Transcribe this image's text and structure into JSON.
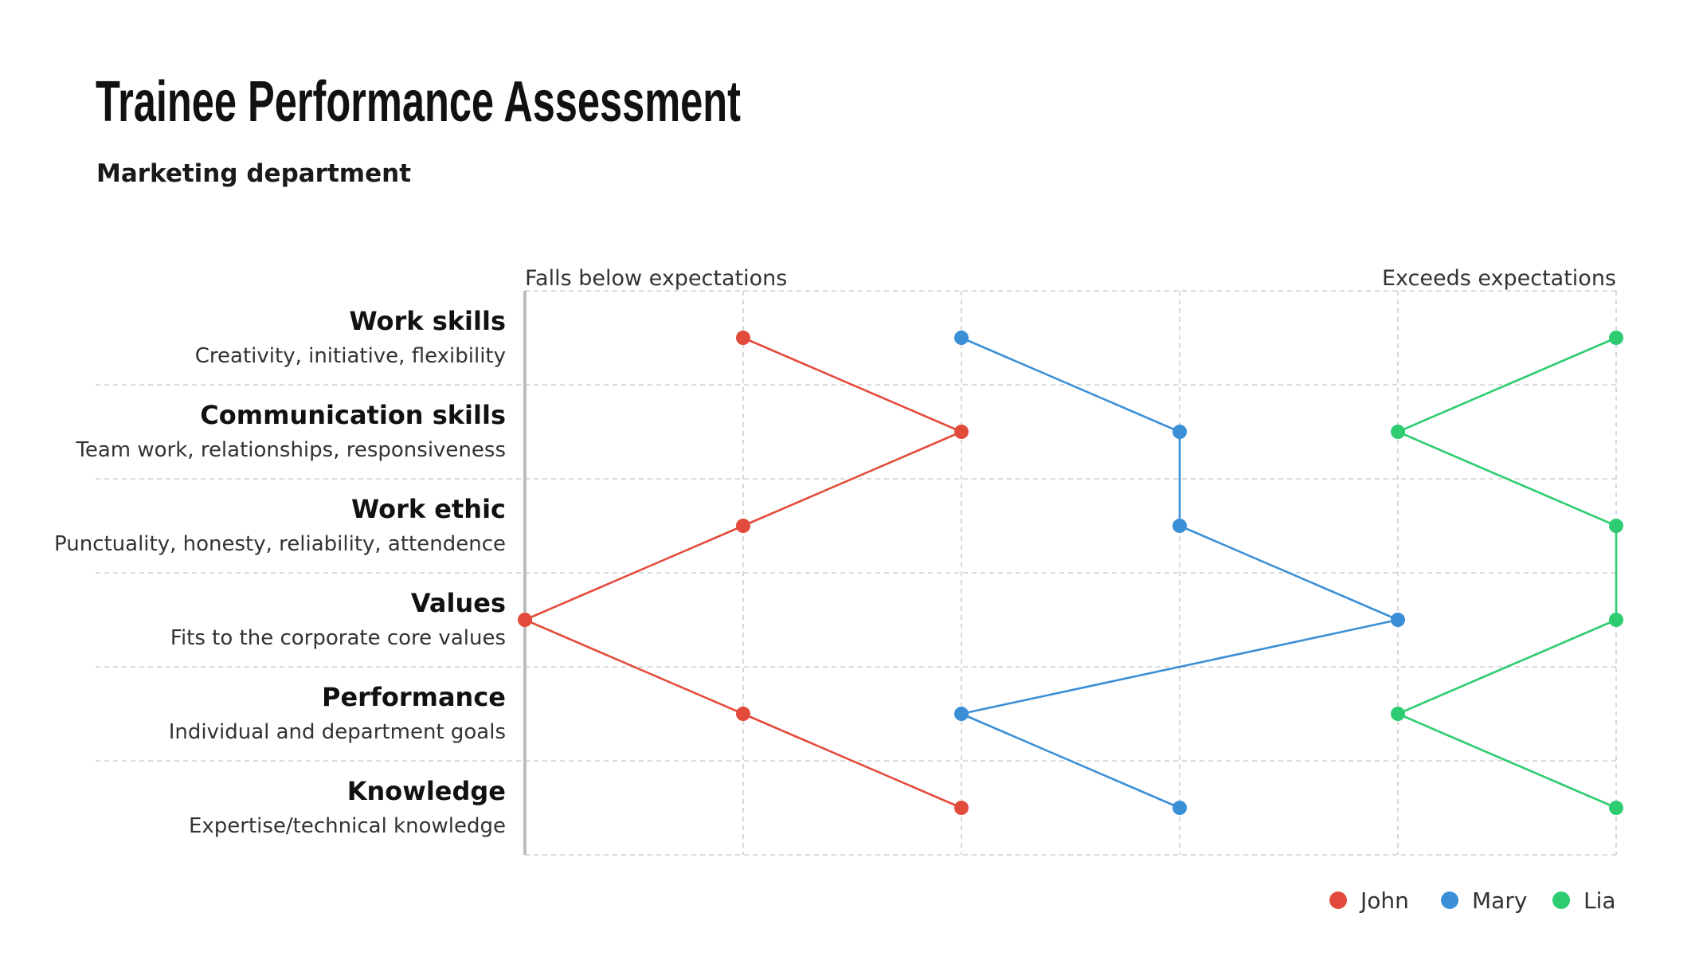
{
  "page": {
    "title": "Trainee Performance Assessment",
    "subtitle": "Marketing department"
  },
  "chart_data": {
    "type": "line",
    "orientation": "horizontal-categories",
    "categories": [
      {
        "label": "Work skills",
        "description": "Creativity, initiative, flexibility"
      },
      {
        "label": "Communication skills",
        "description": "Team work, relationships, responsiveness"
      },
      {
        "label": "Work ethic",
        "description": "Punctuality, honesty, reliability, attendence"
      },
      {
        "label": "Values",
        "description": "Fits to the corporate core values"
      },
      {
        "label": "Performance",
        "description": "Individual and department goals"
      },
      {
        "label": "Knowledge",
        "description": "Expertise/technical knowledge"
      }
    ],
    "scale_min_label": "Falls below expectations",
    "scale_max_label": "Exceeds expectations",
    "xlim": [
      0,
      5
    ],
    "series": [
      {
        "name": "John",
        "color": "#e24b3b",
        "values": [
          1,
          2,
          1,
          0,
          1,
          2
        ]
      },
      {
        "name": "Mary",
        "color": "#3a8fd6",
        "values": [
          2,
          3,
          3,
          4,
          2,
          3
        ]
      },
      {
        "name": "Lia",
        "color": "#2ecc71",
        "values": [
          5,
          4,
          5,
          5,
          4,
          5
        ]
      }
    ],
    "grid": true,
    "legend_position": "bottom-right"
  }
}
